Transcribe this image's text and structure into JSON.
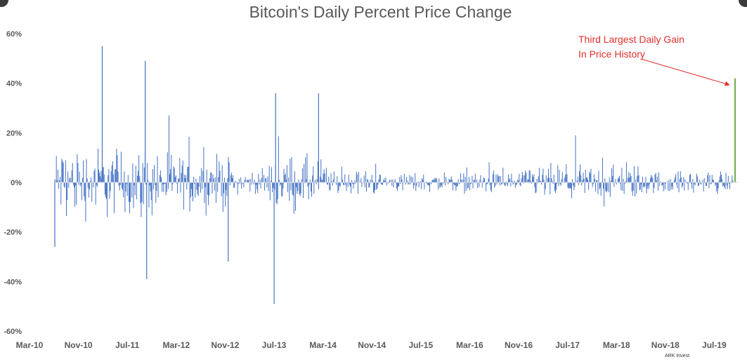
{
  "chart_data": {
    "type": "bar",
    "title": "Bitcoin's Daily Percent Price Change",
    "xlabel": "",
    "ylabel": "",
    "ylim": [
      -60,
      60
    ],
    "y_ticks": [
      "60%",
      "40%",
      "20%",
      "0%",
      "-20%",
      "-40%",
      "-60%"
    ],
    "y_tick_values": [
      60,
      40,
      20,
      0,
      -20,
      -40,
      -60
    ],
    "x_ticks": [
      "Mar-10",
      "Nov-10",
      "Jul-11",
      "Mar-12",
      "Nov-12",
      "Jul-13",
      "Mar-14",
      "Nov-14",
      "Jul-15",
      "Mar-16",
      "Nov-16",
      "Jul-17",
      "Mar-18",
      "Nov-18",
      "Jul-19"
    ],
    "x_range": [
      "2010-03",
      "2019-10"
    ],
    "grid": false,
    "legend": "none",
    "bar_color": "#4472c4",
    "highlight_color": "#70ad47",
    "notable_values": [
      {
        "date": "2010-11",
        "value": 55
      },
      {
        "date": "2011-06",
        "value": 49
      },
      {
        "date": "2011-06",
        "value": -39
      },
      {
        "date": "2013-04",
        "value": -49
      },
      {
        "date": "2013-04",
        "value": 36
      },
      {
        "date": "2013-11",
        "value": 36
      },
      {
        "date": "2010-03",
        "value": -26
      },
      {
        "date": "2012-08",
        "value": -32
      },
      {
        "date": "2019-10",
        "value": 42
      }
    ],
    "highlight": {
      "date": "2019-10",
      "value": 42
    },
    "annotation": "Third Largest Daily Gain In Price History",
    "annotation_color": "#e0302b"
  },
  "source": "ARK Invest"
}
